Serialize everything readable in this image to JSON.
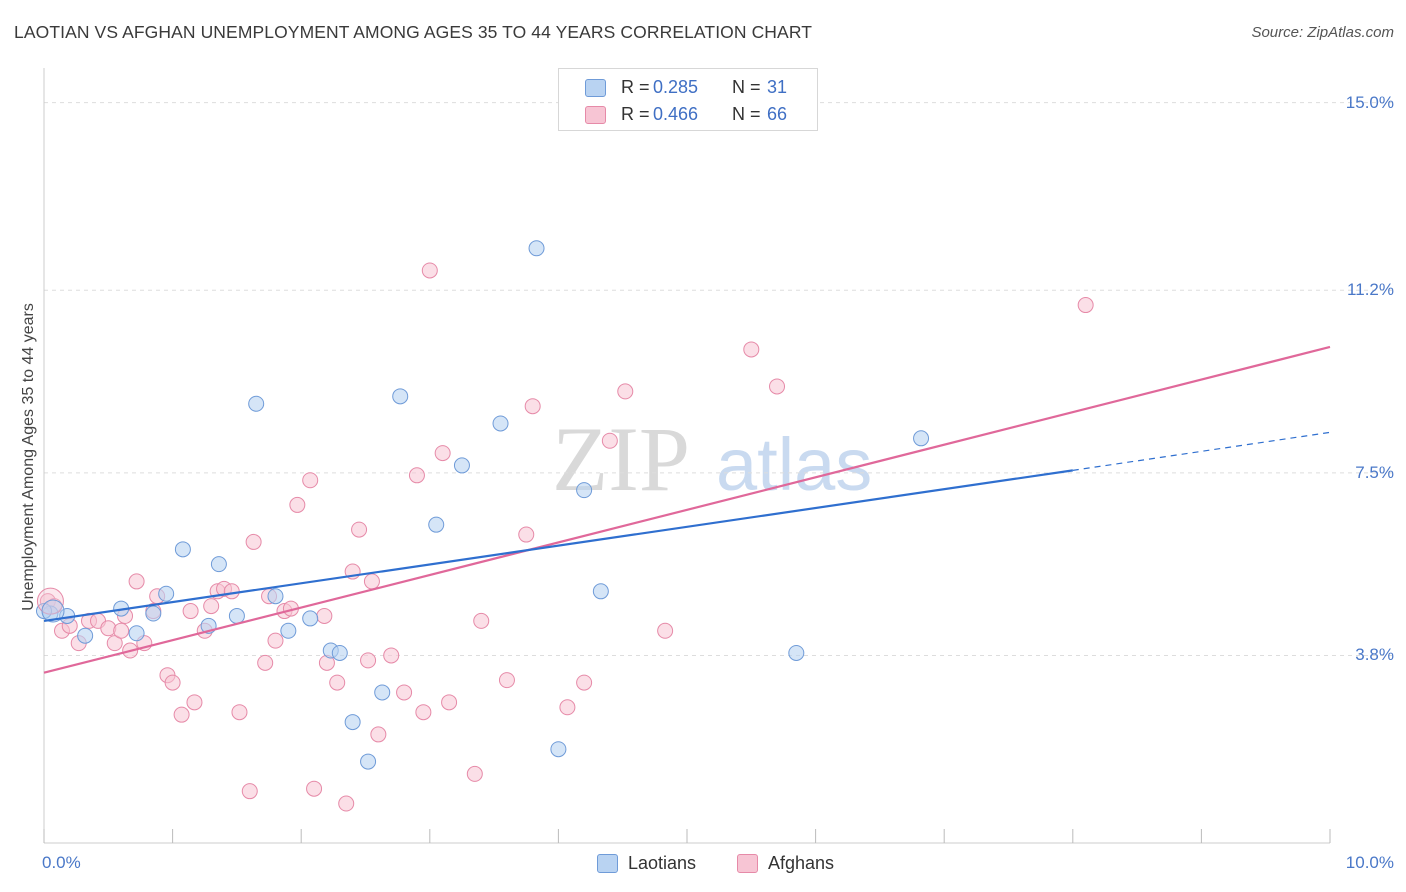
{
  "title": "LAOTIAN VS AFGHAN UNEMPLOYMENT AMONG AGES 35 TO 44 YEARS CORRELATION CHART",
  "source": "Source: ZipAtlas.com",
  "watermark": {
    "zip": "ZIP",
    "atlas": "atlas"
  },
  "legend": {
    "r_label": "R =",
    "n_label": "N =",
    "series": [
      {
        "name": "Laotians",
        "r": "0.285",
        "n": "31"
      },
      {
        "name": "Afghans",
        "r": "0.466",
        "n": "66"
      }
    ]
  },
  "colors": {
    "laotians_fill": "#b9d3f2",
    "laotians_stroke": "#6f9bd8",
    "laotians_line": "#2f6fcf",
    "afghans_fill": "#f7c5d4",
    "afghans_stroke": "#e68aa8",
    "afghans_line": "#e0689a",
    "tick_text": "#4a78c8",
    "grid": "#dddddd"
  },
  "chart_data": {
    "type": "scatter",
    "title": "LAOTIAN VS AFGHAN UNEMPLOYMENT AMONG AGES 35 TO 44 YEARS CORRELATION CHART",
    "xlabel": "",
    "ylabel": "Unemployment Among Ages 35 to 44 years",
    "xlim": [
      0,
      10
    ],
    "ylim": [
      0,
      15.5
    ],
    "x_tick_labels": [
      {
        "value": 0,
        "label": "0.0%"
      },
      {
        "value": 10,
        "label": "10.0%"
      }
    ],
    "y_ticks": [
      {
        "value": 3.8,
        "label": "3.8%"
      },
      {
        "value": 7.5,
        "label": "7.5%"
      },
      {
        "value": 11.2,
        "label": "11.2%"
      },
      {
        "value": 15.0,
        "label": "15.0%"
      }
    ],
    "grid": true,
    "series": [
      {
        "name": "Laotians",
        "r": 0.285,
        "n": 31,
        "trend": {
          "x0": 0,
          "y0": 4.5,
          "x1": 8.0,
          "y1": 7.55,
          "dashed_to_x": 10,
          "dashed_to_y": 8.32
        },
        "points": [
          {
            "x": 0.05,
            "y": 4.65
          },
          {
            "x": 0.18,
            "y": 4.6
          },
          {
            "x": 0.32,
            "y": 4.2
          },
          {
            "x": 0.6,
            "y": 4.75
          },
          {
            "x": 0.72,
            "y": 4.25
          },
          {
            "x": 0.85,
            "y": 4.65
          },
          {
            "x": 0.95,
            "y": 5.05
          },
          {
            "x": 1.08,
            "y": 5.95
          },
          {
            "x": 1.28,
            "y": 4.4
          },
          {
            "x": 1.36,
            "y": 5.65
          },
          {
            "x": 1.5,
            "y": 4.6
          },
          {
            "x": 1.65,
            "y": 8.9
          },
          {
            "x": 1.8,
            "y": 5.0
          },
          {
            "x": 1.9,
            "y": 4.3
          },
          {
            "x": 2.07,
            "y": 4.55
          },
          {
            "x": 2.23,
            "y": 3.9
          },
          {
            "x": 2.3,
            "y": 3.85
          },
          {
            "x": 2.4,
            "y": 2.45
          },
          {
            "x": 2.52,
            "y": 1.65
          },
          {
            "x": 2.63,
            "y": 3.05
          },
          {
            "x": 2.77,
            "y": 9.05
          },
          {
            "x": 3.05,
            "y": 6.45
          },
          {
            "x": 3.25,
            "y": 7.65
          },
          {
            "x": 3.55,
            "y": 8.5
          },
          {
            "x": 3.83,
            "y": 12.05
          },
          {
            "x": 4.0,
            "y": 1.9
          },
          {
            "x": 4.2,
            "y": 7.15
          },
          {
            "x": 4.33,
            "y": 5.1
          },
          {
            "x": 5.85,
            "y": 3.85
          },
          {
            "x": 6.82,
            "y": 8.2
          },
          {
            "x": 0.0,
            "y": 4.7
          }
        ]
      },
      {
        "name": "Afghans",
        "r": 0.466,
        "n": 66,
        "trend": {
          "x0": 0,
          "y0": 3.45,
          "x1": 10,
          "y1": 10.05
        },
        "points": [
          {
            "x": 0.03,
            "y": 4.9
          },
          {
            "x": 0.08,
            "y": 4.8
          },
          {
            "x": 0.14,
            "y": 4.3
          },
          {
            "x": 0.2,
            "y": 4.4
          },
          {
            "x": 0.27,
            "y": 4.05
          },
          {
            "x": 0.35,
            "y": 4.5
          },
          {
            "x": 0.42,
            "y": 4.5
          },
          {
            "x": 0.5,
            "y": 4.35
          },
          {
            "x": 0.55,
            "y": 4.05
          },
          {
            "x": 0.6,
            "y": 4.3
          },
          {
            "x": 0.63,
            "y": 4.6
          },
          {
            "x": 0.67,
            "y": 3.9
          },
          {
            "x": 0.72,
            "y": 5.3
          },
          {
            "x": 0.78,
            "y": 4.05
          },
          {
            "x": 0.85,
            "y": 4.7
          },
          {
            "x": 0.88,
            "y": 5.0
          },
          {
            "x": 0.96,
            "y": 3.4
          },
          {
            "x": 1.0,
            "y": 3.25
          },
          {
            "x": 1.07,
            "y": 2.6
          },
          {
            "x": 1.14,
            "y": 4.7
          },
          {
            "x": 1.17,
            "y": 2.85
          },
          {
            "x": 1.25,
            "y": 4.3
          },
          {
            "x": 1.3,
            "y": 4.8
          },
          {
            "x": 1.35,
            "y": 5.1
          },
          {
            "x": 1.4,
            "y": 5.15
          },
          {
            "x": 1.46,
            "y": 5.1
          },
          {
            "x": 1.52,
            "y": 2.65
          },
          {
            "x": 1.6,
            "y": 1.05
          },
          {
            "x": 1.63,
            "y": 6.1
          },
          {
            "x": 1.72,
            "y": 3.65
          },
          {
            "x": 1.75,
            "y": 5.0
          },
          {
            "x": 1.8,
            "y": 4.1
          },
          {
            "x": 1.87,
            "y": 4.7
          },
          {
            "x": 1.92,
            "y": 4.75
          },
          {
            "x": 1.97,
            "y": 6.85
          },
          {
            "x": 2.07,
            "y": 7.35
          },
          {
            "x": 2.1,
            "y": 1.1
          },
          {
            "x": 2.18,
            "y": 4.6
          },
          {
            "x": 2.2,
            "y": 3.65
          },
          {
            "x": 2.28,
            "y": 3.25
          },
          {
            "x": 2.35,
            "y": 0.8
          },
          {
            "x": 2.4,
            "y": 5.5
          },
          {
            "x": 2.45,
            "y": 6.35
          },
          {
            "x": 2.52,
            "y": 3.7
          },
          {
            "x": 2.55,
            "y": 5.3
          },
          {
            "x": 2.6,
            "y": 2.2
          },
          {
            "x": 2.7,
            "y": 3.8
          },
          {
            "x": 2.8,
            "y": 3.05
          },
          {
            "x": 2.9,
            "y": 7.45
          },
          {
            "x": 2.95,
            "y": 2.65
          },
          {
            "x": 3.0,
            "y": 11.6
          },
          {
            "x": 3.1,
            "y": 7.9
          },
          {
            "x": 3.15,
            "y": 2.85
          },
          {
            "x": 3.35,
            "y": 1.4
          },
          {
            "x": 3.4,
            "y": 4.5
          },
          {
            "x": 3.6,
            "y": 3.3
          },
          {
            "x": 3.75,
            "y": 6.25
          },
          {
            "x": 3.8,
            "y": 8.85
          },
          {
            "x": 4.07,
            "y": 2.75
          },
          {
            "x": 4.2,
            "y": 3.25
          },
          {
            "x": 4.4,
            "y": 8.15
          },
          {
            "x": 4.52,
            "y": 9.15
          },
          {
            "x": 4.83,
            "y": 4.3
          },
          {
            "x": 5.5,
            "y": 10.0
          },
          {
            "x": 5.7,
            "y": 9.25
          },
          {
            "x": 8.1,
            "y": 10.9
          }
        ]
      }
    ]
  }
}
